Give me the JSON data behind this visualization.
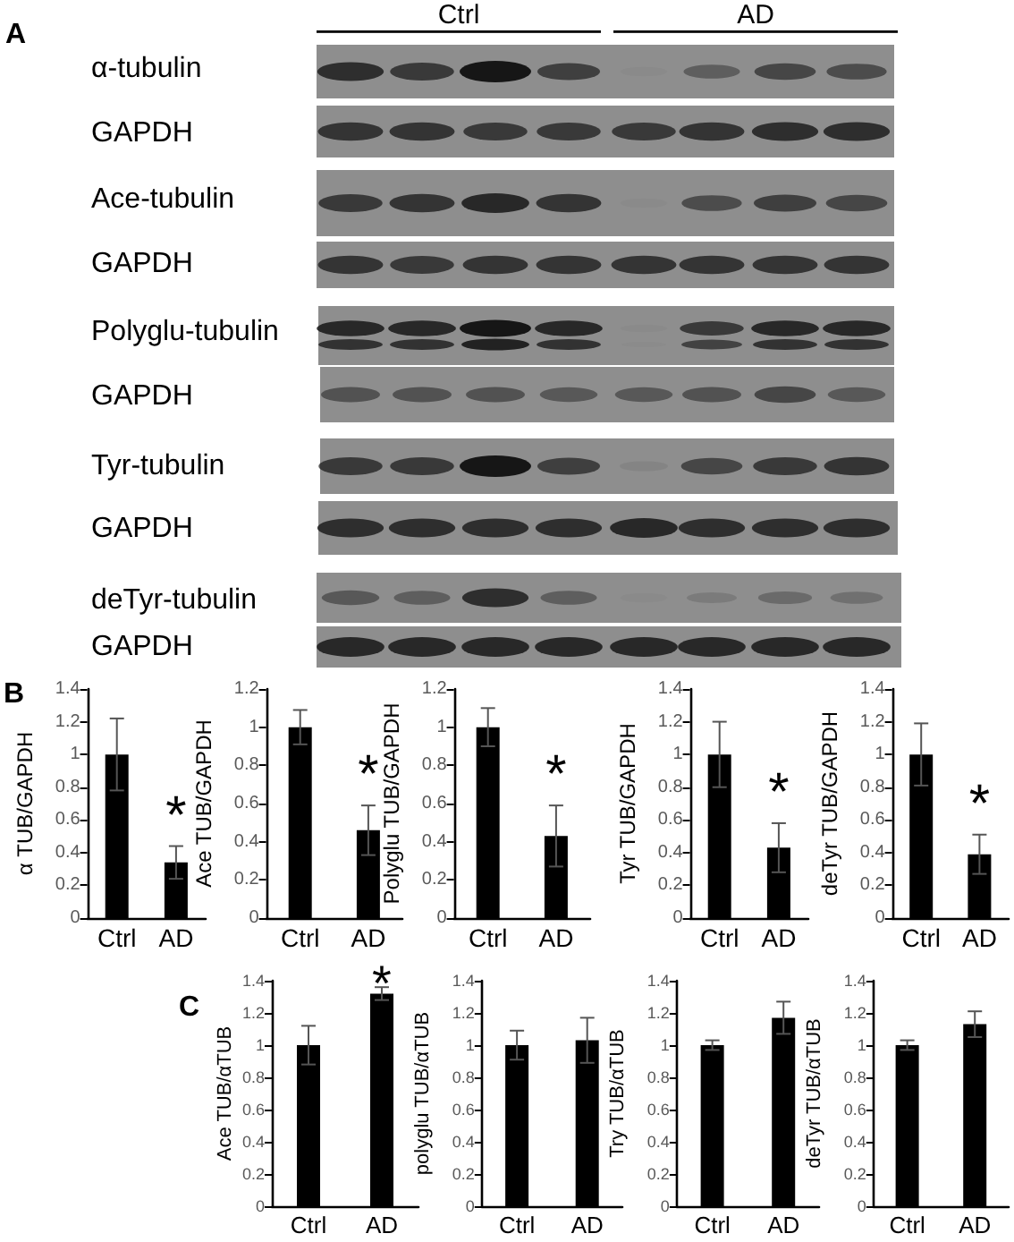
{
  "chart_data": [
    {
      "type": "other",
      "title": "A",
      "annotations": [
        "Ctrl",
        "AD",
        "α-tubulin",
        "GAPDH",
        "Ace-tubulin",
        "GAPDH",
        "Polyglu-tubulin",
        "GAPDH",
        "Tyr-tubulin",
        "GAPDH",
        "deTyr-tubulin",
        "GAPDH"
      ]
    },
    {
      "type": "bar",
      "title": "B",
      "categories": [
        "Ctrl",
        "AD"
      ],
      "values": [
        1,
        0.34
      ],
      "errors": [
        0.22,
        0.1
      ],
      "color": "#000000",
      "ylabel": "α TUB/GAPDH",
      "ylim": [
        0,
        1.4
      ],
      "yticks": [
        0,
        0.2,
        0.4,
        0.6,
        0.8,
        1,
        1.2,
        1.4
      ],
      "annotations": [
        "*"
      ]
    },
    {
      "type": "bar",
      "categories": [
        "Ctrl",
        "AD"
      ],
      "values": [
        1,
        0.46
      ],
      "errors": [
        0.09,
        0.13
      ],
      "color": "#000000",
      "ylabel": "Ace TUB/GAPDH",
      "ylim": [
        0,
        1.2
      ],
      "yticks": [
        0,
        0.2,
        0.4,
        0.6,
        0.8,
        1,
        1.2
      ],
      "annotations": [
        "*"
      ]
    },
    {
      "type": "bar",
      "categories": [
        "Ctrl",
        "AD"
      ],
      "values": [
        1,
        0.43
      ],
      "errors": [
        0.1,
        0.16
      ],
      "color": "#000000",
      "ylabel": "Polyglu TUB/GAPDH",
      "ylim": [
        0,
        1.2
      ],
      "yticks": [
        0,
        0.2,
        0.4,
        0.6,
        0.8,
        1,
        1.2
      ],
      "annotations": [
        "*"
      ]
    },
    {
      "type": "bar",
      "categories": [
        "Ctrl",
        "AD"
      ],
      "values": [
        1,
        0.43
      ],
      "errors": [
        0.2,
        0.15
      ],
      "color": "#000000",
      "ylabel": "Tyr TUB/GAPDH",
      "ylim": [
        0,
        1.4
      ],
      "yticks": [
        0,
        0.2,
        0.4,
        0.6,
        0.8,
        1,
        1.2,
        1.4
      ],
      "annotations": [
        "*"
      ]
    },
    {
      "type": "bar",
      "categories": [
        "Ctrl",
        "AD"
      ],
      "values": [
        1,
        0.39
      ],
      "errors": [
        0.19,
        0.12
      ],
      "color": "#000000",
      "ylabel": "deTyr TUB/GAPDH",
      "ylim": [
        0,
        1.4
      ],
      "yticks": [
        0,
        0.2,
        0.4,
        0.6,
        0.8,
        1,
        1.2,
        1.4
      ],
      "annotations": [
        "*"
      ]
    },
    {
      "type": "bar",
      "title": "C",
      "categories": [
        "Ctrl",
        "AD"
      ],
      "values": [
        1,
        1.32
      ],
      "errors": [
        0.12,
        0.04
      ],
      "color": "#000000",
      "ylabel": "Ace TUB/αTUB",
      "ylim": [
        0,
        1.4
      ],
      "yticks": [
        0,
        0.2,
        0.4,
        0.6,
        0.8,
        1,
        1.2,
        1.4
      ],
      "annotations": [
        "*"
      ]
    },
    {
      "type": "bar",
      "categories": [
        "Ctrl",
        "AD"
      ],
      "values": [
        1,
        1.03
      ],
      "errors": [
        0.09,
        0.14
      ],
      "color": "#000000",
      "ylabel": "polyglu TUB/αTUB",
      "ylim": [
        0,
        1.4
      ],
      "yticks": [
        0,
        0.2,
        0.4,
        0.6,
        0.8,
        1,
        1.2,
        1.4
      ]
    },
    {
      "type": "bar",
      "categories": [
        "Ctrl",
        "AD"
      ],
      "values": [
        1,
        1.17
      ],
      "errors": [
        0.03,
        0.1
      ],
      "color": "#000000",
      "ylabel": "Try TUB/αTUB",
      "ylim": [
        0,
        1.4
      ],
      "yticks": [
        0,
        0.2,
        0.4,
        0.6,
        0.8,
        1,
        1.2,
        1.4
      ]
    },
    {
      "type": "bar",
      "categories": [
        "Ctrl",
        "AD"
      ],
      "values": [
        1,
        1.13
      ],
      "errors": [
        0.03,
        0.08
      ],
      "color": "#000000",
      "ylabel": "deTyr TUB/αTUB",
      "ylim": [
        0,
        1.4
      ],
      "yticks": [
        0,
        0.2,
        0.4,
        0.6,
        0.8,
        1,
        1.2,
        1.4
      ]
    }
  ]
}
